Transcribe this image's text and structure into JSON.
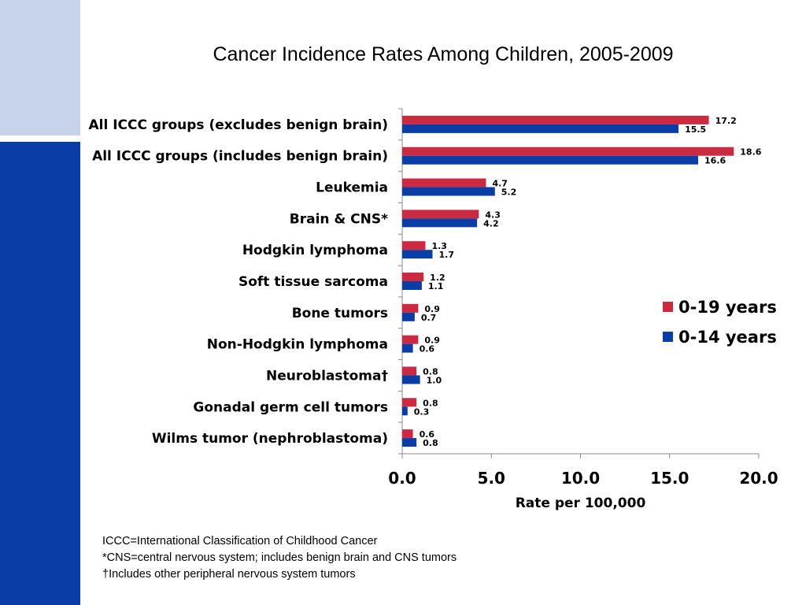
{
  "slide": {
    "title": "Cancer Incidence Rates Among Children, 2005-2009",
    "footnotes": [
      " ICCC=International Classification of Childhood Cancer",
      "*CNS=central nervous system; includes benign brain and CNS tumors",
      "†Includes other peripheral nervous system tumors"
    ]
  },
  "colors": {
    "series1": "#cc2a41",
    "series2": "#0a3ea6",
    "sidebar_light": "#c7d3ea",
    "sidebar_dark": "#0a3ea6"
  },
  "chart_data": {
    "type": "bar",
    "orientation": "horizontal",
    "categories": [
      "All ICCC groups (excludes benign brain)",
      "All ICCC groups (includes benign brain)",
      "Leukemia",
      "Brain & CNS*",
      "Hodgkin lymphoma",
      "Soft tissue sarcoma",
      "Bone tumors",
      "Non-Hodgkin lymphoma",
      "Neuroblastoma†",
      "Gonadal germ cell tumors",
      "Wilms tumor (nephroblastoma)"
    ],
    "series": [
      {
        "name": "0-19 years",
        "values": [
          17.2,
          18.6,
          4.7,
          4.3,
          1.3,
          1.2,
          0.9,
          0.9,
          0.8,
          0.8,
          0.6
        ]
      },
      {
        "name": "0-14 years",
        "values": [
          15.5,
          16.6,
          5.2,
          4.2,
          1.7,
          1.1,
          0.7,
          0.6,
          1.0,
          0.3,
          0.8
        ]
      }
    ],
    "xlabel": "Rate per 100,000",
    "xlim": [
      0,
      20
    ],
    "xticks": [
      "0.0",
      "5.0",
      "10.0",
      "15.0",
      "20.0"
    ],
    "legend_position": "right",
    "grid": false
  }
}
